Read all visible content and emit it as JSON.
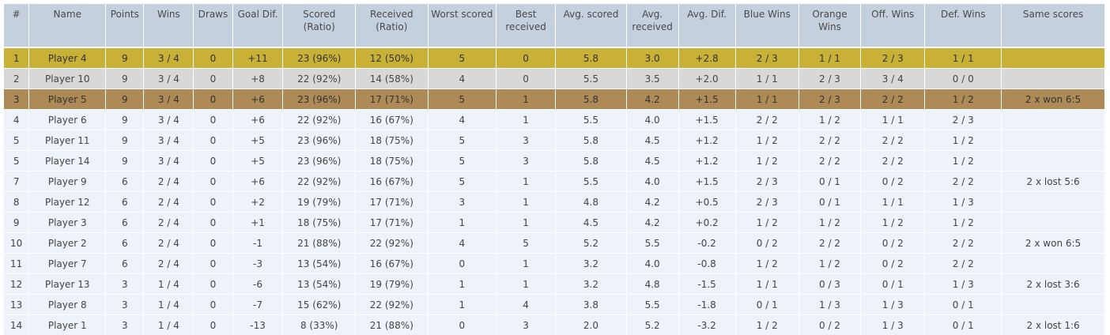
{
  "table": {
    "headers": [
      "#",
      "Name",
      "Points",
      "Wins",
      "Draws",
      "Goal Dif.",
      "Scored (Ratio)",
      "Received (Ratio)",
      "Worst scored",
      "Best received",
      "Avg. scored",
      "Avg. received",
      "Avg. Dif.",
      "Blue Wins",
      "Orange Wins",
      "Off. Wins",
      "Def. Wins",
      "Same scores"
    ],
    "rows": [
      {
        "highlight": "gold",
        "cells": [
          "1",
          "Player 4",
          "9",
          "3 / 4",
          "0",
          "+11",
          "23 (96%)",
          "12 (50%)",
          "5",
          "0",
          "5.8",
          "3.0",
          "+2.8",
          "2 / 3",
          "1 / 1",
          "2 / 3",
          "1 / 1",
          ""
        ]
      },
      {
        "highlight": "silver",
        "cells": [
          "2",
          "Player 10",
          "9",
          "3 / 4",
          "0",
          "+8",
          "22 (92%)",
          "14 (58%)",
          "4",
          "0",
          "5.5",
          "3.5",
          "+2.0",
          "1 / 1",
          "2 / 3",
          "3 / 4",
          "0 / 0",
          ""
        ]
      },
      {
        "highlight": "bronze",
        "cells": [
          "3",
          "Player 5",
          "9",
          "3 / 4",
          "0",
          "+6",
          "23 (96%)",
          "17 (71%)",
          "5",
          "1",
          "5.8",
          "4.2",
          "+1.5",
          "1 / 1",
          "2 / 3",
          "2 / 2",
          "1 / 2",
          "2 x won 6:5"
        ]
      },
      {
        "highlight": "",
        "cells": [
          "4",
          "Player 6",
          "9",
          "3 / 4",
          "0",
          "+6",
          "22 (92%)",
          "16 (67%)",
          "4",
          "1",
          "5.5",
          "4.0",
          "+1.5",
          "2 / 2",
          "1 / 2",
          "1 / 1",
          "2 / 3",
          ""
        ]
      },
      {
        "highlight": "",
        "cells": [
          "5",
          "Player 11",
          "9",
          "3 / 4",
          "0",
          "+5",
          "23 (96%)",
          "18 (75%)",
          "5",
          "3",
          "5.8",
          "4.5",
          "+1.2",
          "1 / 2",
          "2 / 2",
          "2 / 2",
          "1 / 2",
          ""
        ]
      },
      {
        "highlight": "",
        "cells": [
          "5",
          "Player 14",
          "9",
          "3 / 4",
          "0",
          "+5",
          "23 (96%)",
          "18 (75%)",
          "5",
          "3",
          "5.8",
          "4.5",
          "+1.2",
          "1 / 2",
          "2 / 2",
          "2 / 2",
          "1 / 2",
          ""
        ]
      },
      {
        "highlight": "",
        "cells": [
          "7",
          "Player 9",
          "6",
          "2 / 4",
          "0",
          "+6",
          "22 (92%)",
          "16 (67%)",
          "5",
          "1",
          "5.5",
          "4.0",
          "+1.5",
          "2 / 3",
          "0 / 1",
          "0 / 2",
          "2 / 2",
          "2 x lost 5:6"
        ]
      },
      {
        "highlight": "",
        "cells": [
          "8",
          "Player 12",
          "6",
          "2 / 4",
          "0",
          "+2",
          "19 (79%)",
          "17 (71%)",
          "3",
          "1",
          "4.8",
          "4.2",
          "+0.5",
          "2 / 3",
          "0 / 1",
          "1 / 1",
          "1 / 3",
          ""
        ]
      },
      {
        "highlight": "",
        "cells": [
          "9",
          "Player 3",
          "6",
          "2 / 4",
          "0",
          "+1",
          "18 (75%)",
          "17 (71%)",
          "1",
          "1",
          "4.5",
          "4.2",
          "+0.2",
          "1 / 2",
          "1 / 2",
          "1 / 2",
          "1 / 2",
          ""
        ]
      },
      {
        "highlight": "",
        "cells": [
          "10",
          "Player 2",
          "6",
          "2 / 4",
          "0",
          "-1",
          "21 (88%)",
          "22 (92%)",
          "4",
          "5",
          "5.2",
          "5.5",
          "-0.2",
          "0 / 2",
          "2 / 2",
          "0 / 2",
          "2 / 2",
          "2 x won 6:5"
        ]
      },
      {
        "highlight": "",
        "cells": [
          "11",
          "Player 7",
          "6",
          "2 / 4",
          "0",
          "-3",
          "13 (54%)",
          "16 (67%)",
          "0",
          "1",
          "3.2",
          "4.0",
          "-0.8",
          "1 / 2",
          "1 / 2",
          "0 / 2",
          "2 / 2",
          ""
        ]
      },
      {
        "highlight": "",
        "cells": [
          "12",
          "Player 13",
          "3",
          "1 / 4",
          "0",
          "-6",
          "13 (54%)",
          "19 (79%)",
          "1",
          "1",
          "3.2",
          "4.8",
          "-1.5",
          "1 / 1",
          "0 / 3",
          "0 / 1",
          "1 / 3",
          "2 x lost 3:6"
        ]
      },
      {
        "highlight": "",
        "cells": [
          "13",
          "Player 8",
          "3",
          "1 / 4",
          "0",
          "-7",
          "15 (62%)",
          "22 (92%)",
          "1",
          "4",
          "3.8",
          "5.5",
          "-1.8",
          "0 / 1",
          "1 / 3",
          "1 / 3",
          "0 / 1",
          ""
        ]
      },
      {
        "highlight": "",
        "cells": [
          "14",
          "Player 1",
          "3",
          "1 / 4",
          "0",
          "-13",
          "8 (33%)",
          "21 (88%)",
          "0",
          "3",
          "2.0",
          "5.2",
          "-3.2",
          "1 / 2",
          "0 / 2",
          "1 / 3",
          "0 / 1",
          "2 x lost 1:6"
        ]
      }
    ]
  }
}
